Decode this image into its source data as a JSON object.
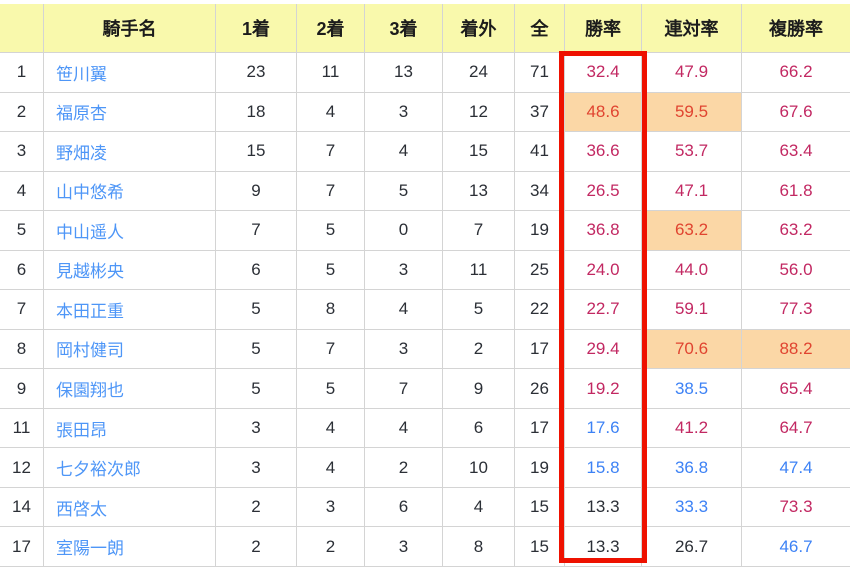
{
  "table": {
    "columns": [
      "",
      "騎手名",
      "1着",
      "2着",
      "3着",
      "着外",
      "全",
      "勝率",
      "連対率",
      "複勝率"
    ],
    "rows": [
      {
        "rank": "1",
        "name": "笹川翼",
        "first": "23",
        "second": "11",
        "third": "13",
        "out": "24",
        "total": "71",
        "win": {
          "value": "32.4",
          "tone": "high",
          "highlight": false
        },
        "place": {
          "value": "47.9",
          "tone": "high",
          "highlight": false
        },
        "show": {
          "value": "66.2",
          "tone": "high",
          "highlight": false
        }
      },
      {
        "rank": "2",
        "name": "福原杏",
        "first": "18",
        "second": "4",
        "third": "3",
        "out": "12",
        "total": "37",
        "win": {
          "value": "48.6",
          "tone": "hot",
          "highlight": true
        },
        "place": {
          "value": "59.5",
          "tone": "hot",
          "highlight": true
        },
        "show": {
          "value": "67.6",
          "tone": "high",
          "highlight": false
        }
      },
      {
        "rank": "3",
        "name": "野畑凌",
        "first": "15",
        "second": "7",
        "third": "4",
        "out": "15",
        "total": "41",
        "win": {
          "value": "36.6",
          "tone": "high",
          "highlight": false
        },
        "place": {
          "value": "53.7",
          "tone": "high",
          "highlight": false
        },
        "show": {
          "value": "63.4",
          "tone": "high",
          "highlight": false
        }
      },
      {
        "rank": "4",
        "name": "山中悠希",
        "first": "9",
        "second": "7",
        "third": "5",
        "out": "13",
        "total": "34",
        "win": {
          "value": "26.5",
          "tone": "high",
          "highlight": false
        },
        "place": {
          "value": "47.1",
          "tone": "high",
          "highlight": false
        },
        "show": {
          "value": "61.8",
          "tone": "high",
          "highlight": false
        }
      },
      {
        "rank": "5",
        "name": "中山遥人",
        "first": "7",
        "second": "5",
        "third": "0",
        "out": "7",
        "total": "19",
        "win": {
          "value": "36.8",
          "tone": "high",
          "highlight": false
        },
        "place": {
          "value": "63.2",
          "tone": "hot",
          "highlight": true
        },
        "show": {
          "value": "63.2",
          "tone": "high",
          "highlight": false
        }
      },
      {
        "rank": "6",
        "name": "見越彬央",
        "first": "6",
        "second": "5",
        "third": "3",
        "out": "11",
        "total": "25",
        "win": {
          "value": "24.0",
          "tone": "high",
          "highlight": false
        },
        "place": {
          "value": "44.0",
          "tone": "high",
          "highlight": false
        },
        "show": {
          "value": "56.0",
          "tone": "high",
          "highlight": false
        }
      },
      {
        "rank": "7",
        "name": "本田正重",
        "first": "5",
        "second": "8",
        "third": "4",
        "out": "5",
        "total": "22",
        "win": {
          "value": "22.7",
          "tone": "high",
          "highlight": false
        },
        "place": {
          "value": "59.1",
          "tone": "high",
          "highlight": false
        },
        "show": {
          "value": "77.3",
          "tone": "high",
          "highlight": false
        }
      },
      {
        "rank": "8",
        "name": "岡村健司",
        "first": "5",
        "second": "7",
        "third": "3",
        "out": "2",
        "total": "17",
        "win": {
          "value": "29.4",
          "tone": "high",
          "highlight": false
        },
        "place": {
          "value": "70.6",
          "tone": "hot",
          "highlight": true
        },
        "show": {
          "value": "88.2",
          "tone": "hot",
          "highlight": true
        }
      },
      {
        "rank": "9",
        "name": "保園翔也",
        "first": "5",
        "second": "5",
        "third": "7",
        "out": "9",
        "total": "26",
        "win": {
          "value": "19.2",
          "tone": "high",
          "highlight": false
        },
        "place": {
          "value": "38.5",
          "tone": "low",
          "highlight": false
        },
        "show": {
          "value": "65.4",
          "tone": "high",
          "highlight": false
        }
      },
      {
        "rank": "11",
        "name": "張田昂",
        "first": "3",
        "second": "4",
        "third": "4",
        "out": "6",
        "total": "17",
        "win": {
          "value": "17.6",
          "tone": "low",
          "highlight": false
        },
        "place": {
          "value": "41.2",
          "tone": "high",
          "highlight": false
        },
        "show": {
          "value": "64.7",
          "tone": "high",
          "highlight": false
        }
      },
      {
        "rank": "12",
        "name": "七夕裕次郎",
        "first": "3",
        "second": "4",
        "third": "2",
        "out": "10",
        "total": "19",
        "win": {
          "value": "15.8",
          "tone": "low",
          "highlight": false
        },
        "place": {
          "value": "36.8",
          "tone": "low",
          "highlight": false
        },
        "show": {
          "value": "47.4",
          "tone": "low",
          "highlight": false
        }
      },
      {
        "rank": "14",
        "name": "西啓太",
        "first": "2",
        "second": "3",
        "third": "6",
        "out": "4",
        "total": "15",
        "win": {
          "value": "13.3",
          "tone": "flat",
          "highlight": false
        },
        "place": {
          "value": "33.3",
          "tone": "low",
          "highlight": false
        },
        "show": {
          "value": "73.3",
          "tone": "high",
          "highlight": false
        }
      },
      {
        "rank": "17",
        "name": "室陽一朗",
        "first": "2",
        "second": "2",
        "third": "3",
        "out": "8",
        "total": "15",
        "win": {
          "value": "13.3",
          "tone": "flat",
          "highlight": false
        },
        "place": {
          "value": "26.7",
          "tone": "flat",
          "highlight": false
        },
        "show": {
          "value": "46.7",
          "tone": "low",
          "highlight": false
        }
      }
    ]
  },
  "annotations": {
    "focus_box_column": "勝率"
  },
  "colors": {
    "header_bg": "#f9f9ac",
    "grid_line": "#d4d4d4",
    "link_blue": "#4e96f7",
    "value_high": "#c22862",
    "value_low": "#3d82f5",
    "value_flat": "#2b2f36",
    "value_hot": "#e04430",
    "highlight_bg": "#fbd7a6",
    "focus_box_red": "#ee1100",
    "count_text": "#2b2f36",
    "header_text": "#1c1c1c"
  }
}
